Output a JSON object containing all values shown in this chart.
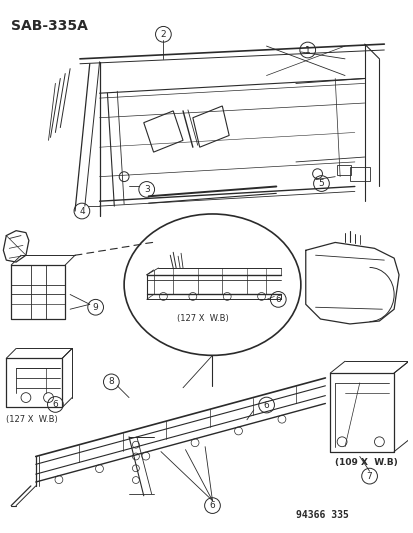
{
  "title": "SAB-335A",
  "part_number": "94366 335",
  "background_color": "#ffffff",
  "line_color": "#2a2a2a",
  "figsize": [
    4.14,
    5.33
  ],
  "dpi": 100,
  "annotations": {
    "127xwb_left": "(127 X  W.B)",
    "127xwb_circle": "(127 X  W.B)",
    "109xwb": "(109 X  W.B)"
  }
}
